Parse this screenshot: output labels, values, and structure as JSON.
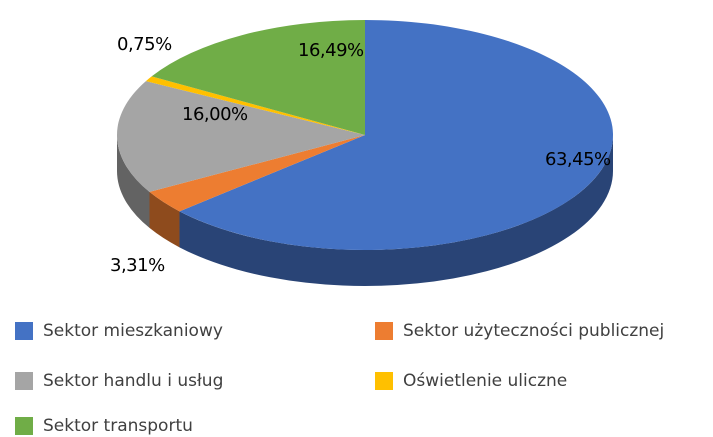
{
  "chart_data": {
    "type": "pie",
    "categories": [
      "Sektor mieszkaniowy",
      "Sektor użyteczności publicznej",
      "Sektor handlu i usług",
      "Oświetlenie uliczne",
      "Sektor transportu"
    ],
    "values": [
      63.45,
      3.31,
      16.0,
      0.75,
      16.49
    ],
    "value_labels": [
      "63,45%",
      "3,31%",
      "16,00%",
      "0,75%",
      "16,49%"
    ],
    "colors": [
      "#4472c4",
      "#ed7d31",
      "#a5a5a5",
      "#ffc000",
      "#70ad47"
    ]
  }
}
